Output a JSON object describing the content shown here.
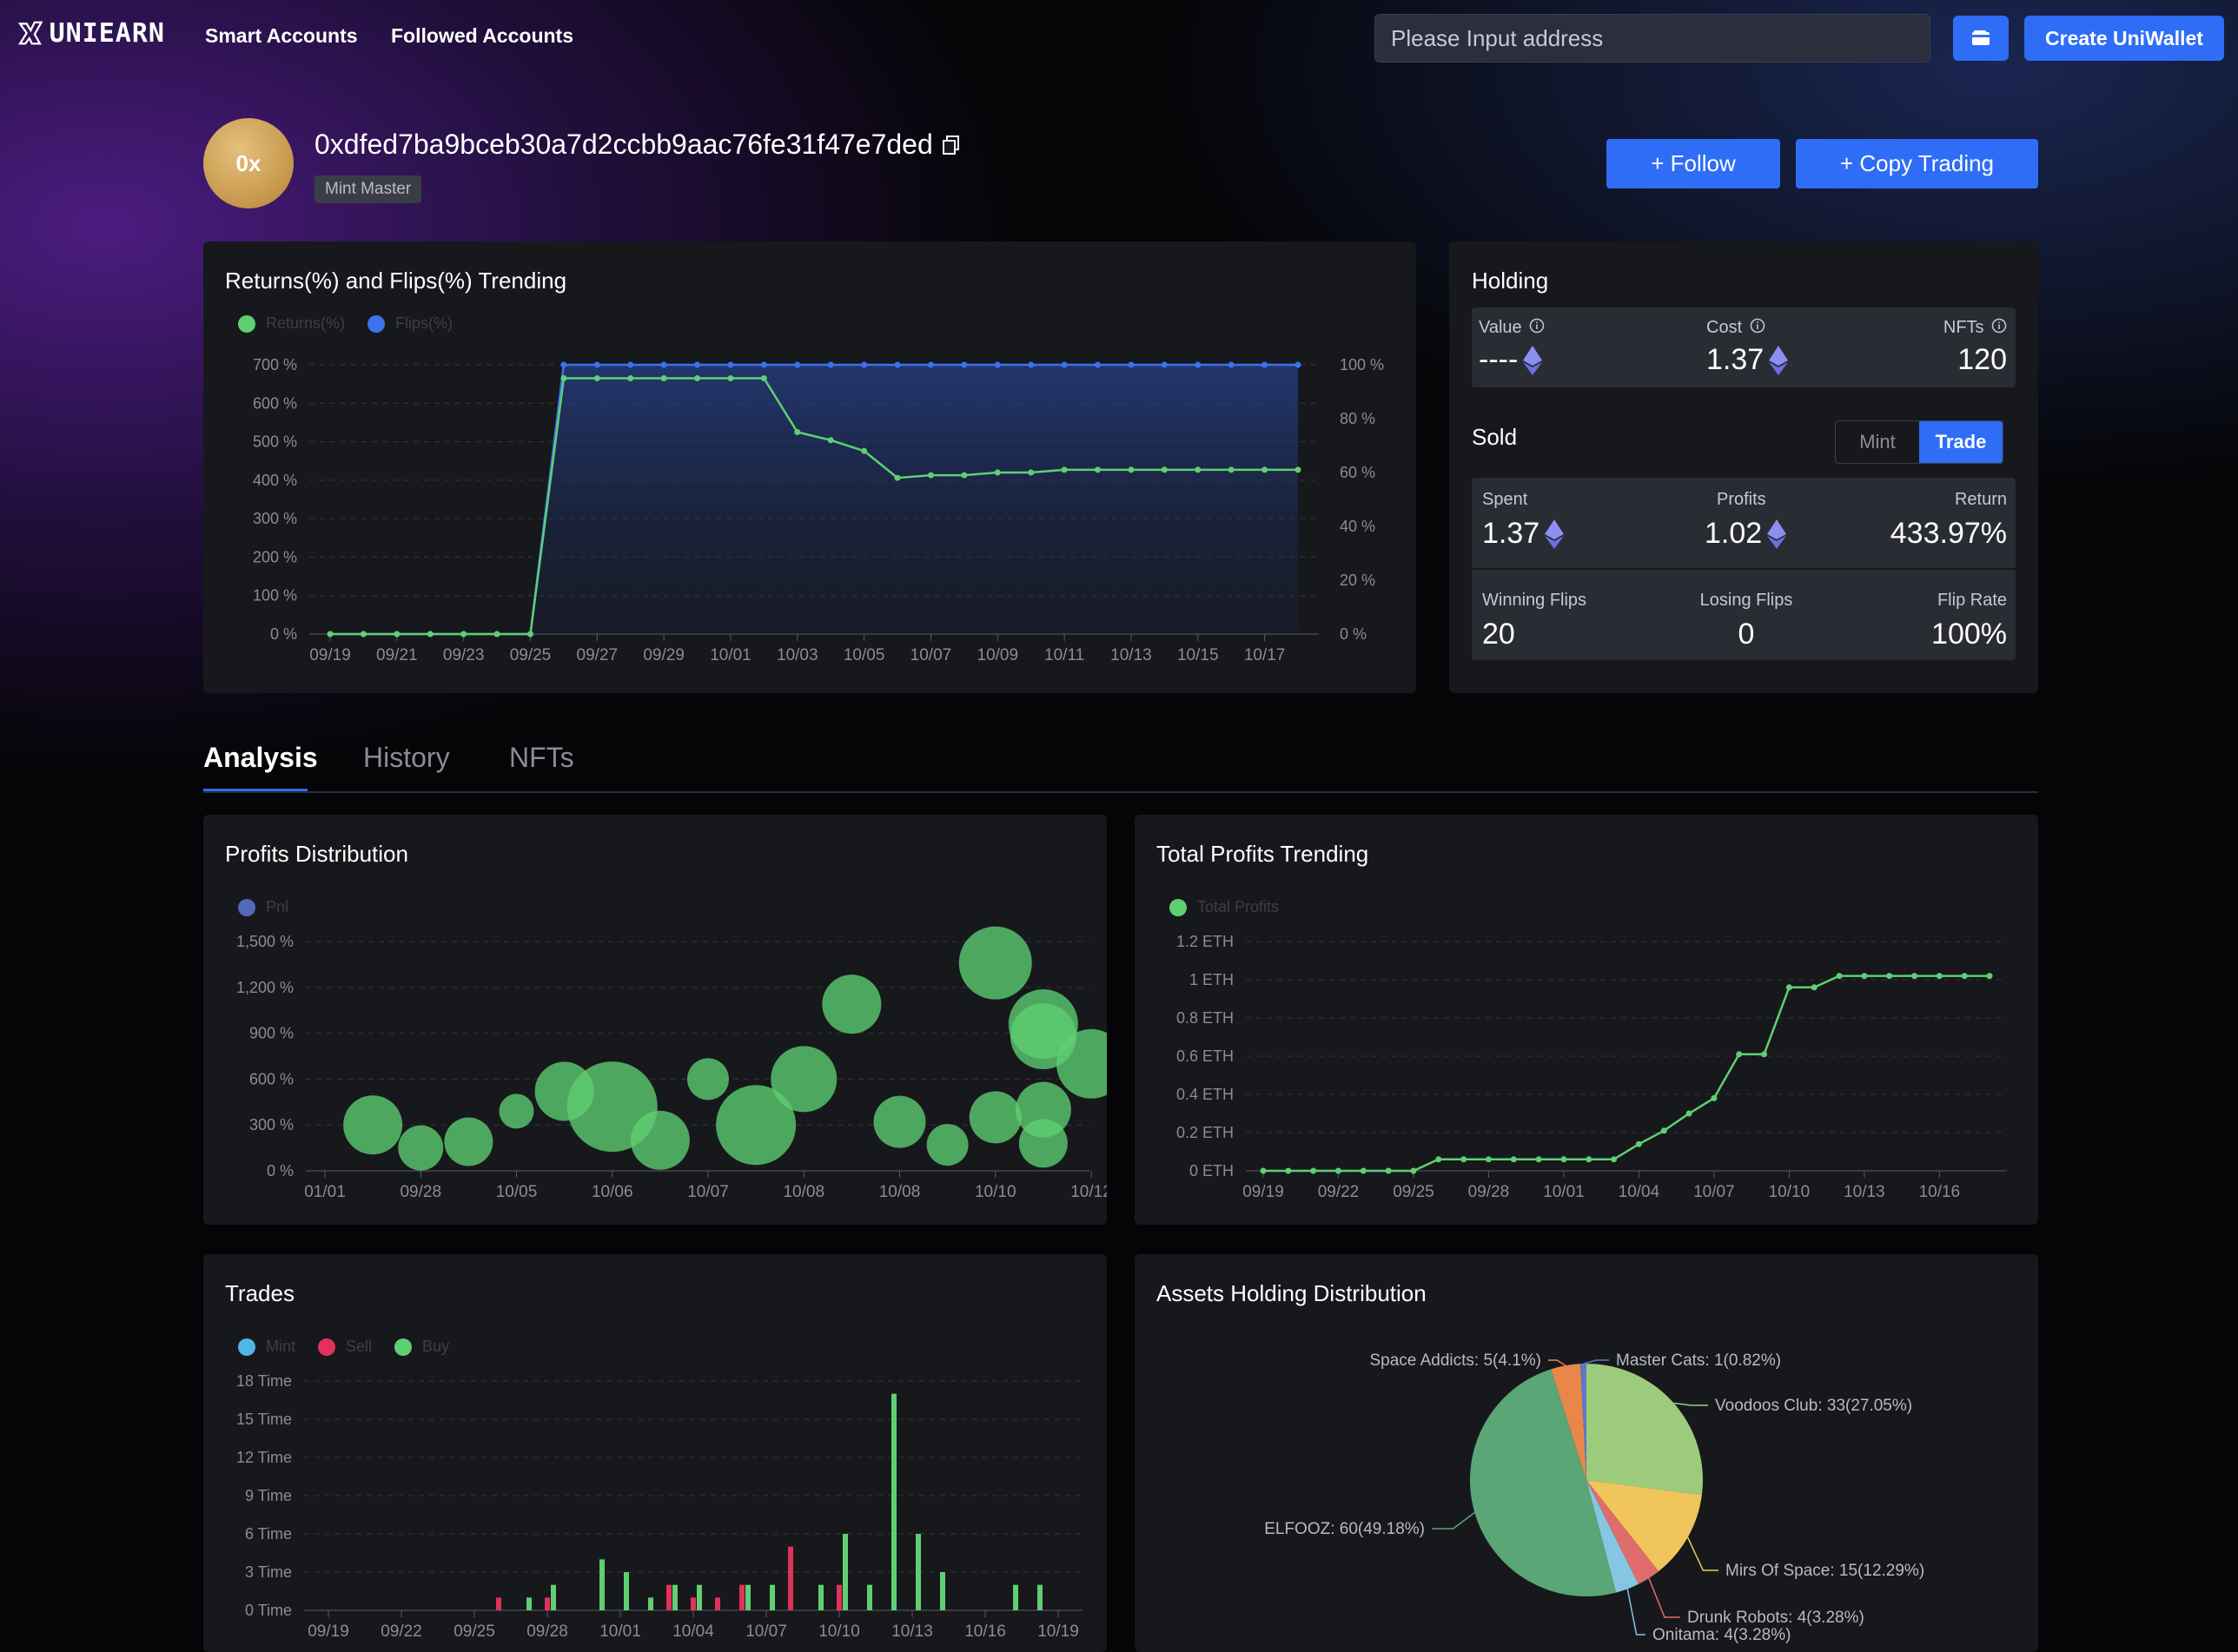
{
  "header": {
    "logo_text": "UNIEARN",
    "nav": [
      "Smart Accounts",
      "Followed Accounts"
    ],
    "search_placeholder": "Please Input address",
    "create_label": "Create UniWallet"
  },
  "profile": {
    "avatar_text": "0x",
    "address": "0xdfed7ba9bceb30a7d2ccbb9aac76fe31f47e7ded",
    "badge": "Mint Master",
    "follow_label": "+ Follow",
    "copy_label": "+ Copy Trading"
  },
  "trend_card": {
    "title": "Returns(%) and Flips(%) Trending"
  },
  "holding": {
    "title": "Holding",
    "value_label": "Value",
    "value": "----",
    "cost_label": "Cost",
    "cost": "1.37",
    "nfts_label": "NFTs",
    "nfts": "120",
    "sold_title": "Sold",
    "seg_mint": "Mint",
    "seg_trade": "Trade",
    "spent_label": "Spent",
    "spent": "1.37",
    "profits_label": "Profits",
    "profits": "1.02",
    "return_label": "Return",
    "return": "433.97%",
    "winning_label": "Winning Flips",
    "winning": "20",
    "losing_label": "Losing Flips",
    "losing": "0",
    "fliprate_label": "Flip Rate",
    "fliprate": "100%"
  },
  "tabs": [
    "Analysis",
    "History",
    "NFTs"
  ],
  "cards": {
    "profits_distribution": "Profits Distribution",
    "total_profits": "Total Profits Trending",
    "trades": "Trades",
    "assets": "Assets Holding Distribution"
  },
  "colors": {
    "accent": "#2f6df6",
    "green": "#5ed072",
    "blue": "#3a72f0",
    "red": "#e0325a",
    "mint": "#4fb6e6",
    "pnl": "#5468b8"
  },
  "chart_data": [
    {
      "id": "returns_flips",
      "type": "line",
      "title": "Returns(%) and Flips(%) Trending",
      "legend": [
        "Returns(%)",
        "Flips(%)"
      ],
      "x_ticks": [
        "09/19",
        "09/21",
        "09/23",
        "09/25",
        "09/27",
        "09/29",
        "10/01",
        "10/03",
        "10/05",
        "10/07",
        "10/09",
        "10/11",
        "10/13",
        "10/15",
        "10/17"
      ],
      "y_left_ticks": [
        "700 %",
        "600 %",
        "500 %",
        "400 %",
        "300 %",
        "200 %",
        "100 %",
        "0 %"
      ],
      "y_right_ticks": [
        "100 %",
        "80 %",
        "60 %",
        "40 %",
        "20 %",
        "0 %"
      ],
      "ylim_left": [
        0,
        700
      ],
      "ylim_right": [
        0,
        100
      ],
      "x_count": 30,
      "series": [
        {
          "name": "Returns(%)",
          "axis": "right",
          "values": [
            0,
            0,
            0,
            0,
            0,
            0,
            0,
            95,
            95,
            95,
            95,
            95,
            95,
            95,
            75,
            72,
            68,
            58,
            59,
            59,
            60,
            60,
            61,
            61,
            61,
            61,
            61,
            61,
            61,
            61
          ]
        },
        {
          "name": "Flips(%)",
          "axis": "right",
          "values": [
            0,
            0,
            0,
            0,
            0,
            0,
            0,
            100,
            100,
            100,
            100,
            100,
            100,
            100,
            100,
            100,
            100,
            100,
            100,
            100,
            100,
            100,
            100,
            100,
            100,
            100,
            100,
            100,
            100,
            100
          ]
        }
      ]
    },
    {
      "id": "profits_distribution",
      "type": "scatter",
      "title": "Profits Distribution",
      "legend": [
        "Pnl"
      ],
      "x_ticks": [
        "01/01",
        "09/28",
        "10/05",
        "10/06",
        "10/07",
        "10/08",
        "10/08",
        "10/10",
        "10/12"
      ],
      "y_ticks": [
        "1,500 %",
        "1,200 %",
        "900 %",
        "600 %",
        "300 %",
        "0 %"
      ],
      "ylim": [
        0,
        1500
      ],
      "points": [
        {
          "x": 0.5,
          "y": 300,
          "r": 34
        },
        {
          "x": 1.0,
          "y": 150,
          "r": 26
        },
        {
          "x": 1.5,
          "y": 190,
          "r": 28
        },
        {
          "x": 2.0,
          "y": 390,
          "r": 20
        },
        {
          "x": 2.5,
          "y": 520,
          "r": 34
        },
        {
          "x": 3.0,
          "y": 420,
          "r": 52
        },
        {
          "x": 3.5,
          "y": 200,
          "r": 34
        },
        {
          "x": 4.0,
          "y": 600,
          "r": 24
        },
        {
          "x": 4.5,
          "y": 300,
          "r": 46
        },
        {
          "x": 5.0,
          "y": 600,
          "r": 38
        },
        {
          "x": 5.5,
          "y": 1090,
          "r": 34
        },
        {
          "x": 6.0,
          "y": 320,
          "r": 30
        },
        {
          "x": 6.5,
          "y": 170,
          "r": 24
        },
        {
          "x": 7.0,
          "y": 350,
          "r": 30
        },
        {
          "x": 7.0,
          "y": 1360,
          "r": 42
        },
        {
          "x": 7.5,
          "y": 960,
          "r": 40
        },
        {
          "x": 7.5,
          "y": 880,
          "r": 38
        },
        {
          "x": 7.5,
          "y": 400,
          "r": 32
        },
        {
          "x": 7.5,
          "y": 180,
          "r": 28
        },
        {
          "x": 8.0,
          "y": 700,
          "r": 40
        }
      ]
    },
    {
      "id": "total_profits",
      "type": "line",
      "title": "Total Profits Trending",
      "legend": [
        "Total Profits"
      ],
      "x_ticks": [
        "09/19",
        "09/22",
        "09/25",
        "09/28",
        "10/01",
        "10/04",
        "10/07",
        "10/10",
        "10/13",
        "10/16"
      ],
      "y_ticks": [
        "1.2 ETH",
        "1 ETH",
        "0.8 ETH",
        "0.6 ETH",
        "0.4 ETH",
        "0.2 ETH",
        "0 ETH"
      ],
      "ylim": [
        0,
        1.2
      ],
      "x_count": 30,
      "values": [
        0,
        0,
        0,
        0,
        0,
        0,
        0,
        0.06,
        0.06,
        0.06,
        0.06,
        0.06,
        0.06,
        0.06,
        0.06,
        0.14,
        0.21,
        0.3,
        0.38,
        0.61,
        0.61,
        0.96,
        0.96,
        1.02,
        1.02,
        1.02,
        1.02,
        1.02,
        1.02,
        1.02
      ]
    },
    {
      "id": "trades",
      "type": "bar",
      "title": "Trades",
      "legend": [
        "Mint",
        "Sell",
        "Buy"
      ],
      "x_ticks": [
        "09/19",
        "09/22",
        "09/25",
        "09/28",
        "10/01",
        "10/04",
        "10/07",
        "10/10",
        "10/13",
        "10/16",
        "10/19"
      ],
      "y_ticks": [
        "18 Time",
        "15 Time",
        "12 Time",
        "9 Time",
        "6 Time",
        "3 Time",
        "0 Time"
      ],
      "ylim": [
        0,
        18
      ],
      "x_count": 31,
      "series": [
        {
          "name": "Mint",
          "values": [
            0,
            0,
            0,
            0,
            0,
            0,
            0,
            0,
            0,
            0,
            0,
            0,
            0,
            0,
            0,
            0,
            0,
            0,
            0,
            0,
            0,
            0,
            0,
            0,
            0,
            0,
            0,
            0,
            0,
            0,
            0
          ]
        },
        {
          "name": "Sell",
          "values": [
            0,
            0,
            0,
            0,
            0,
            0,
            0,
            1,
            0,
            1,
            0,
            0,
            0,
            0,
            2,
            1,
            1,
            2,
            0,
            5,
            0,
            2,
            0,
            0,
            0,
            0,
            0,
            0,
            0,
            0,
            0
          ]
        },
        {
          "name": "Buy",
          "values": [
            0,
            0,
            0,
            0,
            0,
            0,
            0,
            0,
            1,
            2,
            0,
            4,
            3,
            1,
            2,
            2,
            0,
            2,
            2,
            0,
            2,
            6,
            2,
            17,
            6,
            3,
            0,
            0,
            2,
            2,
            0
          ]
        }
      ]
    },
    {
      "id": "assets",
      "type": "pie",
      "title": "Assets Holding Distribution",
      "slices": [
        {
          "label": "Voodoos Club: 33(27.05%)",
          "value": 33,
          "color": "#9ccc7b"
        },
        {
          "label": "Mirs Of Space: 15(12.29%)",
          "value": 15,
          "color": "#f0c65c"
        },
        {
          "label": "Drunk Robots: 4(3.28%)",
          "value": 4,
          "color": "#e06c6c"
        },
        {
          "label": "Onitama: 4(3.28%)",
          "value": 4,
          "color": "#86c6e3"
        },
        {
          "label": "ELFOOZ: 60(49.18%)",
          "value": 60,
          "color": "#5aa676"
        },
        {
          "label": "Space Addicts: 5(4.1%)",
          "value": 5,
          "color": "#e9874a"
        },
        {
          "label": "Master Cats: 1(0.82%)",
          "value": 1,
          "color": "#5a78c8"
        }
      ]
    }
  ]
}
